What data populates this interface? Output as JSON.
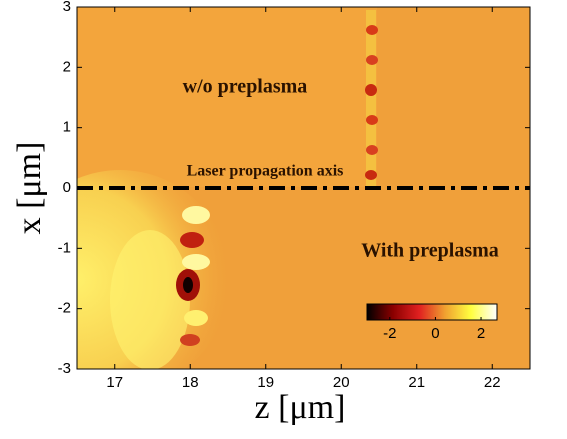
{
  "chart_data": {
    "type": "heatmap",
    "xlabel": "z [μm]",
    "ylabel": "x [μm]",
    "xlim": [
      16.5,
      22.5
    ],
    "ylim": [
      -3,
      3
    ],
    "xticks": [
      17,
      18,
      19,
      20,
      21,
      22
    ],
    "yticks": [
      -3,
      -2,
      -1,
      0,
      1,
      2,
      3
    ],
    "annotations": [
      "w/o preplasma",
      "Laser propagation axis",
      "With preplasma"
    ],
    "reference_line": {
      "y": 0,
      "color": "#000000"
    },
    "colormap": [
      "#000000",
      "#8b0000",
      "#e02020",
      "#f0a030",
      "#ffff40",
      "#ffffff"
    ],
    "clim": [
      -3,
      2.7
    ],
    "colorbar_ticks": [
      -2,
      0,
      2
    ]
  }
}
